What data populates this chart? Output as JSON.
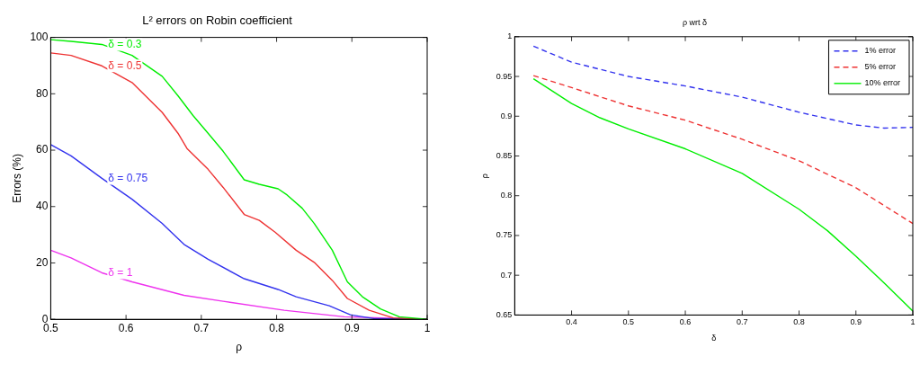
{
  "chart_data": [
    {
      "type": "line",
      "title": "L² errors on Robin coefficient",
      "xlabel": "ρ",
      "ylabel": "Errors (%)",
      "xlim": [
        0.5,
        1
      ],
      "xticks": [
        0.5,
        0.6,
        0.7,
        0.8,
        0.9,
        1
      ],
      "ylim": [
        0,
        100
      ],
      "yticks": [
        0,
        20,
        40,
        60,
        80,
        100
      ],
      "grid": false,
      "legend": false,
      "marker": "none",
      "series": [
        {
          "name": "δ = 0.3",
          "color": "#00ee00",
          "x": [
            0.5,
            0.527,
            0.568,
            0.608,
            0.648,
            0.669,
            0.689,
            0.709,
            0.729,
            0.757,
            0.777,
            0.802,
            0.814,
            0.834,
            0.85,
            0.874,
            0.894,
            0.914,
            0.938,
            0.963,
            1
          ],
          "values": [
            99.2,
            98.6,
            97.5,
            93.6,
            86.2,
            79.3,
            72.3,
            66,
            59.6,
            49.5,
            47.9,
            46.3,
            44.1,
            39.4,
            34,
            24.5,
            13.3,
            8,
            3.7,
            0.9,
            0
          ]
        },
        {
          "name": "δ = 0.5",
          "color": "#ee3333",
          "x": [
            0.5,
            0.527,
            0.568,
            0.608,
            0.648,
            0.669,
            0.681,
            0.709,
            0.729,
            0.757,
            0.777,
            0.798,
            0.826,
            0.85,
            0.874,
            0.894,
            0.923,
            0.955,
            1
          ],
          "values": [
            94.5,
            93.6,
            89.9,
            84,
            73.4,
            66,
            60.6,
            53.2,
            46.8,
            37.2,
            35.1,
            30.9,
            24.5,
            20.2,
            13.8,
            7.4,
            3.2,
            0.5,
            0
          ]
        },
        {
          "name": "δ = 0.75",
          "color": "#3333ee",
          "x": [
            0.5,
            0.527,
            0.568,
            0.608,
            0.648,
            0.677,
            0.709,
            0.757,
            0.802,
            0.826,
            0.87,
            0.898,
            0.931,
            1
          ],
          "values": [
            62,
            58,
            50,
            42.6,
            34,
            26.6,
            21.3,
            14.4,
            10.6,
            8,
            4.8,
            1.6,
            0.2,
            0
          ]
        },
        {
          "name": "δ = 1",
          "color": "#ee33ee",
          "x": [
            0.5,
            0.527,
            0.568,
            0.608,
            0.677,
            0.729,
            0.81,
            0.89,
            1
          ],
          "values": [
            24.5,
            21.8,
            16.5,
            13.3,
            8.5,
            6.4,
            3.2,
            0.9,
            0
          ]
        }
      ]
    },
    {
      "type": "line",
      "title": "ρ wrt δ",
      "xlabel": "δ",
      "ylabel": "ρ",
      "xlim": [
        0.3,
        1
      ],
      "xticks": [
        0.4,
        0.5,
        0.6,
        0.7,
        0.8,
        0.9,
        1
      ],
      "ylim": [
        0.65,
        1
      ],
      "yticks": [
        0.65,
        0.7,
        0.75,
        0.8,
        0.85,
        0.9,
        0.95,
        1
      ],
      "grid": false,
      "legend": "top right",
      "marker": "none",
      "series": [
        {
          "name": "1% error",
          "color": "#3333ee",
          "line_style": "dashed",
          "x": [
            0.333,
            0.4,
            0.5,
            0.6,
            0.7,
            0.8,
            0.9,
            0.95,
            1
          ],
          "values": [
            0.988,
            0.968,
            0.95,
            0.938,
            0.924,
            0.905,
            0.889,
            0.885,
            0.886
          ]
        },
        {
          "name": "5% error",
          "color": "#ee3333",
          "line_style": "dashed",
          "x": [
            0.333,
            0.4,
            0.5,
            0.6,
            0.7,
            0.8,
            0.9,
            1
          ],
          "values": [
            0.951,
            0.936,
            0.913,
            0.895,
            0.871,
            0.844,
            0.81,
            0.765
          ]
        },
        {
          "name": "10% error",
          "color": "#00ee00",
          "line_style": "solid",
          "x": [
            0.333,
            0.4,
            0.45,
            0.5,
            0.6,
            0.7,
            0.8,
            0.85,
            0.9,
            0.95,
            1
          ],
          "values": [
            0.947,
            0.916,
            0.898,
            0.884,
            0.859,
            0.828,
            0.783,
            0.756,
            0.724,
            0.69,
            0.655
          ]
        }
      ]
    }
  ]
}
